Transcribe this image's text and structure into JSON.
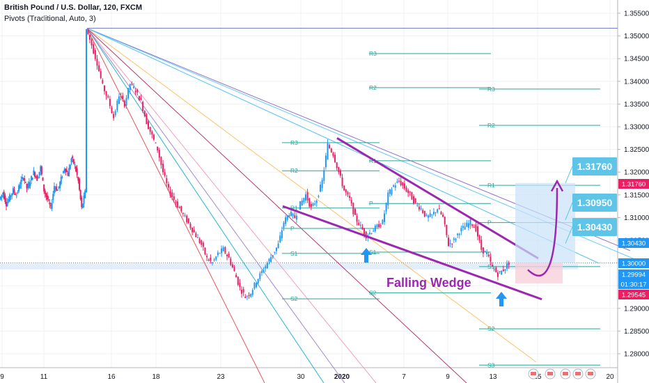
{
  "header": {
    "title": "British Pound / U.S. Dollar, 120, FXCM",
    "indicator": "Pivots (Traditional, Auto, 3)"
  },
  "chart_data": {
    "type": "candlestick",
    "symbol": "GBPUSD",
    "timeframe": "120",
    "ylim": [
      1.2755,
      1.3575
    ],
    "y_ticks": [
      "1.35500",
      "1.35000",
      "1.34500",
      "1.34000",
      "1.33500",
      "1.33000",
      "1.32500",
      "1.32000",
      "1.31500",
      "1.31000",
      "1.30500",
      "1.30000",
      "1.29500",
      "1.29000",
      "1.28500",
      "1.28000"
    ],
    "x_ticks": [
      "9",
      "11",
      "16",
      "18",
      "23",
      "30",
      "2020",
      "7",
      "9",
      "13",
      "15",
      "20"
    ],
    "price_badges": [
      {
        "label": "1.31760",
        "value": 1.3176,
        "color": "#e91e63"
      },
      {
        "label": "1.30430",
        "value": 1.3043,
        "color": "#2196f3"
      },
      {
        "label": "1.30000",
        "value": 1.3,
        "color": "#2196f3"
      },
      {
        "label": "1.29994",
        "value": 1.29994,
        "color": "#2196f3"
      },
      {
        "label": "01:30:17",
        "value": 1.29915,
        "color": "#2196f3"
      },
      {
        "label": "1.29545",
        "value": 1.29545,
        "color": "#e91e63"
      }
    ],
    "callouts": [
      {
        "label": "1.31760",
        "value": 1.3176
      },
      {
        "label": "1.30950",
        "value": 1.3095
      },
      {
        "label": "1.30430",
        "value": 1.3043
      }
    ],
    "annotation": "Falling Wedge",
    "pivot_labels": [
      "R3",
      "R2",
      "R1",
      "P",
      "S1",
      "S2",
      "S3"
    ],
    "pivots": [
      {
        "period": 1,
        "R3": 1.3265,
        "R2": 1.3203,
        "R1": 1.3121,
        "P": 1.3076,
        "S1": 1.3021,
        "S2": 1.2921
      },
      {
        "period": 2,
        "R3": 1.3461,
        "R2": 1.3386,
        "R1": 1.3225,
        "P": 1.3131,
        "S1": 1.3024,
        "S2": 1.2934
      },
      {
        "period": 3,
        "R3": 1.3383,
        "R2": 1.3303,
        "R1": 1.3171,
        "P": 1.3089,
        "S1": 1.2992,
        "S2": 1.2855,
        "S3": 1.2775
      }
    ],
    "price_path": [
      [
        1.314,
        1.3155,
        1.313,
        1.3145,
        1.316,
        1.315,
        1.3175,
        1.319,
        1.3165,
        1.318,
        1.32,
        1.3185,
        1.321,
        1.316,
        1.314,
        1.312,
        1.317,
        1.316,
        1.3185,
        1.321,
        1.3195,
        1.323,
        1.3215,
        1.318,
        1.312,
        1.3155
      ],
      [
        1.3515,
        1.348,
        1.344,
        1.339,
        1.336,
        1.332,
        1.337,
        1.335,
        1.3395,
        1.338,
        1.3355,
        1.331,
        1.328,
        1.325,
        1.32,
        1.316,
        1.314,
        1.312,
        1.31,
        1.308,
        1.306,
        1.304,
        1.301,
        1.3,
        1.302,
        1.303,
        1.301,
        1.298,
        1.2945,
        1.2925,
        1.2935,
        1.296,
        1.298,
        1.3,
        1.302,
        1.304,
        1.309,
        1.311,
        1.31,
        1.313,
        1.315,
        1.312,
        1.314,
        1.318,
        1.326,
        1.324,
        1.32,
        1.316,
        1.314,
        1.31,
        1.308,
        1.306,
        1.307,
        1.308,
        1.309,
        1.315,
        1.317,
        1.318,
        1.3165,
        1.315,
        1.313,
        1.312,
        1.31,
        1.3105,
        1.312,
        1.31,
        1.304,
        1.305,
        1.307,
        1.308,
        1.309,
        1.3075,
        1.303,
        1.302,
        1.299,
        1.2975,
        1.2985,
        1.3
      ]
    ]
  }
}
